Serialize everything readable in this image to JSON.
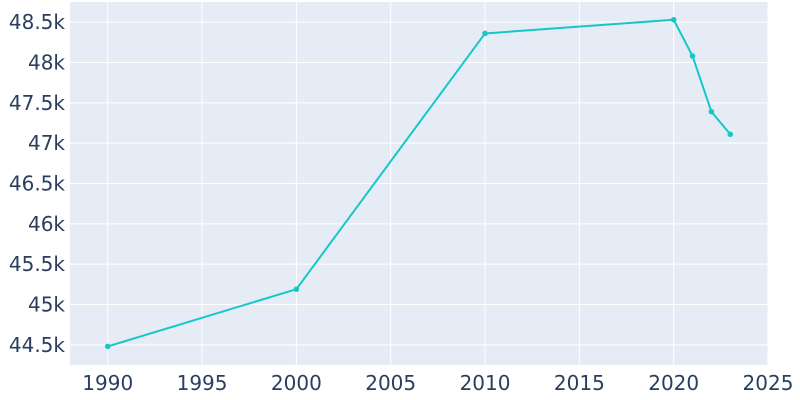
{
  "chart_data": {
    "type": "line",
    "title": "",
    "xlabel": "",
    "ylabel": "",
    "x": [
      1990,
      2000,
      2010,
      2020,
      2021,
      2022,
      2023
    ],
    "series": [
      {
        "values": [
          44480,
          45190,
          48360,
          48530,
          48080,
          47390,
          47110
        ]
      }
    ],
    "xlim": [
      1988,
      2025
    ],
    "ylim": [
      44250,
      48750
    ],
    "x_ticks": [
      1990,
      1995,
      2000,
      2005,
      2010,
      2015,
      2020,
      2025
    ],
    "x_tick_labels": [
      "1990",
      "1995",
      "2000",
      "2005",
      "2010",
      "2015",
      "2020",
      "2025"
    ],
    "y_ticks": [
      44500,
      45000,
      45500,
      46000,
      46500,
      47000,
      47500,
      48000,
      48500
    ],
    "y_tick_labels": [
      "44.5k",
      "45k",
      "45.5k",
      "46k",
      "46.5k",
      "47k",
      "47.5k",
      "48k",
      "48.5k"
    ],
    "grid": true,
    "legend": "none",
    "colors": {
      "line": "#17c7c7",
      "plot_background": "#e5ecf6",
      "grid": "#ffffff",
      "tick_text": "#2a3f5f"
    }
  }
}
